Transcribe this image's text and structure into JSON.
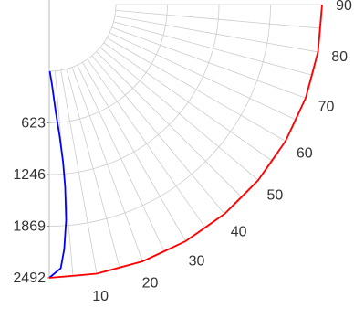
{
  "chart_data": {
    "type": "line",
    "subtype": "polar-quadrant",
    "title": "",
    "radial_axis": {
      "range": [
        0,
        2492
      ],
      "ticks": [
        "623",
        "1246",
        "1869",
        "2492"
      ],
      "inverted": true
    },
    "angular_axis": {
      "range_deg": [
        0,
        90
      ],
      "ticks": [
        "10",
        "20",
        "30",
        "40",
        "50",
        "60",
        "70",
        "80",
        "90"
      ]
    },
    "grid": true,
    "series": [
      {
        "color": "#0000ff",
        "points": [
          {
            "theta": 0.5,
            "r": 0
          },
          {
            "theta": 2,
            "r": 170
          },
          {
            "theta": 3.5,
            "r": 500
          },
          {
            "theta": 4.5,
            "r": 780
          },
          {
            "theta": 5,
            "r": 1100
          },
          {
            "theta": 5,
            "r": 1400
          },
          {
            "theta": 4.5,
            "r": 1800
          },
          {
            "theta": 3.5,
            "r": 2150
          },
          {
            "theta": 2.5,
            "r": 2380
          },
          {
            "theta": 0,
            "r": 2492
          }
        ]
      },
      {
        "color": "#ff0000",
        "points": [
          {
            "theta": 0,
            "r": 2492
          },
          {
            "theta": 10,
            "r": 2492
          },
          {
            "theta": 20,
            "r": 2492
          },
          {
            "theta": 30,
            "r": 2492
          },
          {
            "theta": 40,
            "r": 2492
          },
          {
            "theta": 50,
            "r": 2492
          },
          {
            "theta": 60,
            "r": 2492
          },
          {
            "theta": 70,
            "r": 2492
          },
          {
            "theta": 80,
            "r": 2492
          },
          {
            "theta": 90,
            "r": 2492
          }
        ]
      }
    ]
  }
}
